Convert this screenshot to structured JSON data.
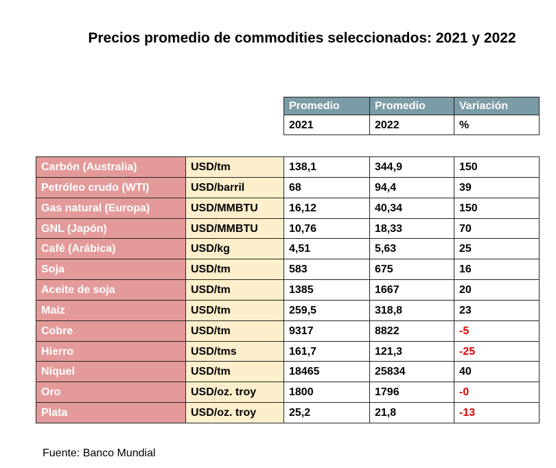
{
  "title": "Precios promedio de commodities seleccionados: 2021 y 2022",
  "header": {
    "rows": [
      [
        "Promedio",
        "Promedio",
        "Variación"
      ],
      [
        "2021",
        "2022",
        "%"
      ]
    ]
  },
  "table": {
    "rows": [
      [
        "Carbón (Australia)",
        "USD/tm",
        "138,1",
        "344,9",
        "150"
      ],
      [
        "Petróleo crudo (WTI)",
        "USD/barril",
        "68",
        "94,4",
        "39"
      ],
      [
        "Gas natural (Europa)",
        "USD/MMBTU",
        "16,12",
        "40,34",
        "150"
      ],
      [
        "GNL (Japón)",
        "USD/MMBTU",
        "10,76",
        "18,33",
        "70"
      ],
      [
        "Café (Arábica)",
        "USD/kg",
        "4,51",
        "5,63",
        "25"
      ],
      [
        "Soja",
        "USD/tm",
        "583",
        "675",
        "16"
      ],
      [
        "Aceite de soja",
        "USD/tm",
        "1385",
        "1667",
        "20"
      ],
      [
        "Maíz",
        "USD/tm",
        "259,5",
        "318,8",
        "23"
      ],
      [
        "Cobre",
        "USD/tm",
        "9317",
        "8822",
        "-5"
      ],
      [
        "Hierro",
        "USD/tms",
        "161,7",
        "121,3",
        "-25"
      ],
      [
        "Níquel",
        "USD/tm",
        "18465",
        "25834",
        "40"
      ],
      [
        "Oro",
        "USD/oz. troy",
        "1800",
        "1796",
        "-0"
      ],
      [
        "Plata",
        "USD/oz. troy",
        "25,2",
        "21,8",
        "-13"
      ]
    ]
  },
  "source": "Fuente: Banco Mundial"
}
